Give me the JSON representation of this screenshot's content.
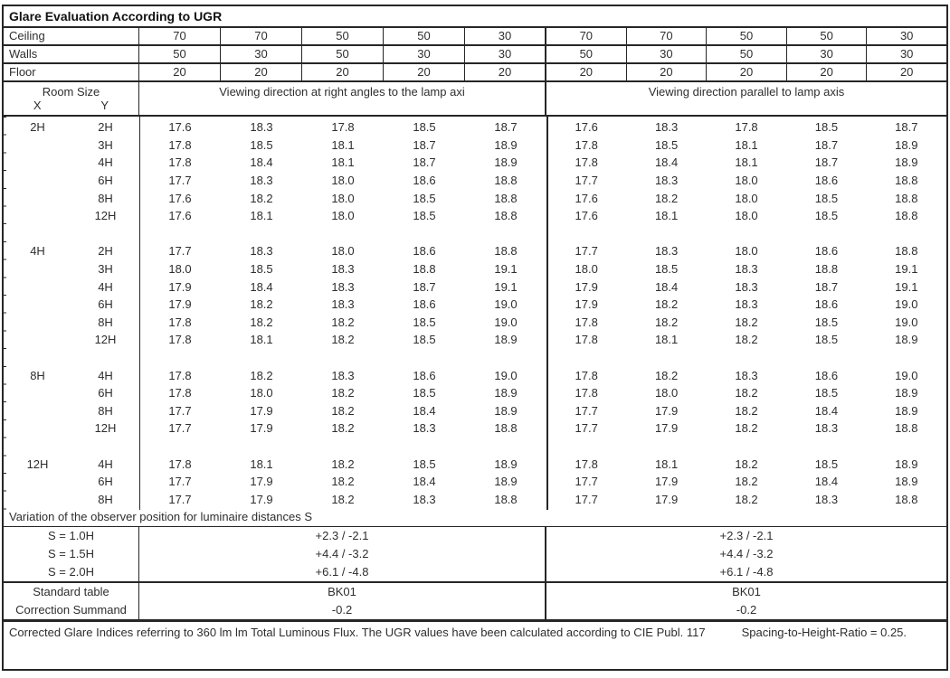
{
  "title": "Glare Evaluation According to UGR",
  "surface_rows": [
    {
      "label": "Ceiling",
      "values": [
        "70",
        "70",
        "50",
        "50",
        "30",
        "70",
        "70",
        "50",
        "50",
        "30"
      ]
    },
    {
      "label": "Walls",
      "values": [
        "50",
        "30",
        "50",
        "30",
        "30",
        "50",
        "30",
        "50",
        "30",
        "30"
      ]
    },
    {
      "label": "Floor",
      "values": [
        "20",
        "20",
        "20",
        "20",
        "20",
        "20",
        "20",
        "20",
        "20",
        "20"
      ]
    }
  ],
  "room_size": {
    "label": "Room Size",
    "x_label": "X",
    "y_label": "Y"
  },
  "section_headers": {
    "left": "Viewing direction at right angles to the lamp axi",
    "right": "Viewing direction parallel to lamp axis"
  },
  "groups": [
    {
      "x": "2H",
      "rows": [
        {
          "y": "2H",
          "left": [
            "17.6",
            "18.3",
            "17.8",
            "18.5",
            "18.7"
          ],
          "right": [
            "17.6",
            "18.3",
            "17.8",
            "18.5",
            "18.7"
          ]
        },
        {
          "y": "3H",
          "left": [
            "17.8",
            "18.5",
            "18.1",
            "18.7",
            "18.9"
          ],
          "right": [
            "17.8",
            "18.5",
            "18.1",
            "18.7",
            "18.9"
          ]
        },
        {
          "y": "4H",
          "left": [
            "17.8",
            "18.4",
            "18.1",
            "18.7",
            "18.9"
          ],
          "right": [
            "17.8",
            "18.4",
            "18.1",
            "18.7",
            "18.9"
          ]
        },
        {
          "y": "6H",
          "left": [
            "17.7",
            "18.3",
            "18.0",
            "18.6",
            "18.8"
          ],
          "right": [
            "17.7",
            "18.3",
            "18.0",
            "18.6",
            "18.8"
          ]
        },
        {
          "y": "8H",
          "left": [
            "17.6",
            "18.2",
            "18.0",
            "18.5",
            "18.8"
          ],
          "right": [
            "17.6",
            "18.2",
            "18.0",
            "18.5",
            "18.8"
          ]
        },
        {
          "y": "12H",
          "left": [
            "17.6",
            "18.1",
            "18.0",
            "18.5",
            "18.8"
          ],
          "right": [
            "17.6",
            "18.1",
            "18.0",
            "18.5",
            "18.8"
          ]
        }
      ]
    },
    {
      "x": "4H",
      "rows": [
        {
          "y": "2H",
          "left": [
            "17.7",
            "18.3",
            "18.0",
            "18.6",
            "18.8"
          ],
          "right": [
            "17.7",
            "18.3",
            "18.0",
            "18.6",
            "18.8"
          ]
        },
        {
          "y": "3H",
          "left": [
            "18.0",
            "18.5",
            "18.3",
            "18.8",
            "19.1"
          ],
          "right": [
            "18.0",
            "18.5",
            "18.3",
            "18.8",
            "19.1"
          ]
        },
        {
          "y": "4H",
          "left": [
            "17.9",
            "18.4",
            "18.3",
            "18.7",
            "19.1"
          ],
          "right": [
            "17.9",
            "18.4",
            "18.3",
            "18.7",
            "19.1"
          ]
        },
        {
          "y": "6H",
          "left": [
            "17.9",
            "18.2",
            "18.3",
            "18.6",
            "19.0"
          ],
          "right": [
            "17.9",
            "18.2",
            "18.3",
            "18.6",
            "19.0"
          ]
        },
        {
          "y": "8H",
          "left": [
            "17.8",
            "18.2",
            "18.2",
            "18.5",
            "19.0"
          ],
          "right": [
            "17.8",
            "18.2",
            "18.2",
            "18.5",
            "19.0"
          ]
        },
        {
          "y": "12H",
          "left": [
            "17.8",
            "18.1",
            "18.2",
            "18.5",
            "18.9"
          ],
          "right": [
            "17.8",
            "18.1",
            "18.2",
            "18.5",
            "18.9"
          ]
        }
      ]
    },
    {
      "x": "8H",
      "rows": [
        {
          "y": "4H",
          "left": [
            "17.8",
            "18.2",
            "18.3",
            "18.6",
            "19.0"
          ],
          "right": [
            "17.8",
            "18.2",
            "18.3",
            "18.6",
            "19.0"
          ]
        },
        {
          "y": "6H",
          "left": [
            "17.8",
            "18.0",
            "18.2",
            "18.5",
            "18.9"
          ],
          "right": [
            "17.8",
            "18.0",
            "18.2",
            "18.5",
            "18.9"
          ]
        },
        {
          "y": "8H",
          "left": [
            "17.7",
            "17.9",
            "18.2",
            "18.4",
            "18.9"
          ],
          "right": [
            "17.7",
            "17.9",
            "18.2",
            "18.4",
            "18.9"
          ]
        },
        {
          "y": "12H",
          "left": [
            "17.7",
            "17.9",
            "18.2",
            "18.3",
            "18.8"
          ],
          "right": [
            "17.7",
            "17.9",
            "18.2",
            "18.3",
            "18.8"
          ]
        }
      ]
    },
    {
      "x": "12H",
      "rows": [
        {
          "y": "4H",
          "left": [
            "17.8",
            "18.1",
            "18.2",
            "18.5",
            "18.9"
          ],
          "right": [
            "17.8",
            "18.1",
            "18.2",
            "18.5",
            "18.9"
          ]
        },
        {
          "y": "6H",
          "left": [
            "17.7",
            "17.9",
            "18.2",
            "18.4",
            "18.9"
          ],
          "right": [
            "17.7",
            "17.9",
            "18.2",
            "18.4",
            "18.9"
          ]
        },
        {
          "y": "8H",
          "left": [
            "17.7",
            "17.9",
            "18.2",
            "18.3",
            "18.8"
          ],
          "right": [
            "17.7",
            "17.9",
            "18.2",
            "18.3",
            "18.8"
          ]
        }
      ]
    }
  ],
  "variation_header": "Variation of the observer position for luminaire distances S",
  "variation_rows": [
    {
      "label": "S = 1.0H",
      "left": "+2.3 / -2.1",
      "right": "+2.3 / -2.1"
    },
    {
      "label": "S = 1.5H",
      "left": "+4.4 / -3.2",
      "right": "+4.4 / -3.2"
    },
    {
      "label": "S = 2.0H",
      "left": "+6.1 / -4.8",
      "right": "+6.1 / -4.8"
    }
  ],
  "summary_rows": [
    {
      "label": "Standard table",
      "left": "BK01",
      "right": "BK01"
    },
    {
      "label": "Correction Summand",
      "left": "-0.2",
      "right": "-0.2"
    }
  ],
  "footer": {
    "text": "Corrected Glare Indices referring to 360 lm lm Total Luminous Flux. The UGR values have been calculated according to CIE Publ. 117",
    "ratio": "Spacing-to-Height-Ratio = 0.25."
  },
  "colors": {
    "border": "#262626",
    "text": "#2e2e2e",
    "background": "#ffffff"
  }
}
